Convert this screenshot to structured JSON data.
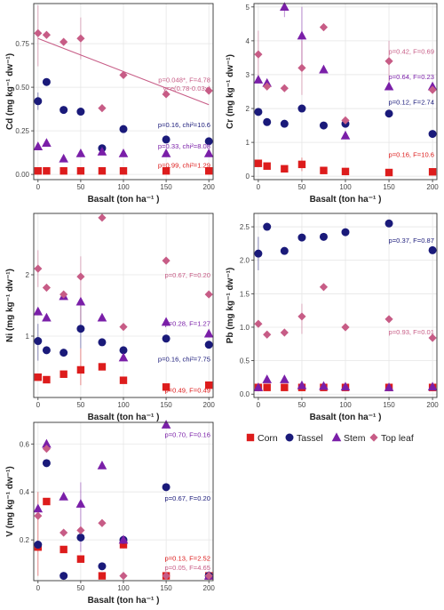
{
  "colors": {
    "corn": "#dd1c1c",
    "tassel": "#1a1a7a",
    "stem": "#7a1fa8",
    "topleaf": "#c75c86",
    "grid": "#e6e6e6",
    "border": "#333333"
  },
  "legend": {
    "items": [
      {
        "key": "corn",
        "label": "Corn",
        "marker": "square"
      },
      {
        "key": "tassel",
        "label": "Tassel",
        "marker": "circle"
      },
      {
        "key": "stem",
        "label": "Stem",
        "marker": "triangle"
      },
      {
        "key": "topleaf",
        "label": "Top leaf",
        "marker": "diamond"
      }
    ]
  },
  "chart_data": [
    {
      "id": "cd",
      "type": "scatter",
      "xlabel": "Basalt (ton ha⁻¹ )",
      "ylabel": "Cd (mg kg⁻¹ dw⁻¹)",
      "xlim": [
        -5,
        205
      ],
      "ylim": [
        -0.03,
        0.98
      ],
      "xticks": [
        0,
        50,
        100,
        150,
        200
      ],
      "yticks": [
        0.0,
        0.25,
        0.5,
        0.75
      ],
      "ytick_labels": [
        "0.00",
        "0.25",
        "0.50",
        "0.75"
      ],
      "series": [
        {
          "key": "corn",
          "x": [
            0,
            10,
            30,
            50,
            75,
            100,
            150,
            200
          ],
          "y": [
            0.02,
            0.02,
            0.02,
            0.02,
            0.02,
            0.02,
            0.02,
            0.02
          ]
        },
        {
          "key": "tassel",
          "x": [
            0,
            10,
            30,
            50,
            75,
            100,
            150,
            200
          ],
          "y": [
            0.42,
            0.53,
            0.37,
            0.36,
            0.15,
            0.26,
            0.2,
            0.19
          ],
          "err": [
            [
              0,
              0.37,
              0.47
            ]
          ]
        },
        {
          "key": "stem",
          "x": [
            0,
            10,
            30,
            50,
            75,
            100,
            150,
            200
          ],
          "y": [
            0.16,
            0.18,
            0.09,
            0.12,
            0.13,
            0.12,
            0.12,
            0.12
          ]
        },
        {
          "key": "topleaf",
          "x": [
            0,
            10,
            30,
            50,
            75,
            100,
            150,
            200
          ],
          "y": [
            0.81,
            0.8,
            0.76,
            0.78,
            0.38,
            0.57,
            0.46,
            0.48
          ],
          "err": [
            [
              0,
              0.62,
              0.97
            ],
            [
              50,
              0.66,
              0.9
            ]
          ]
        }
      ],
      "fit": {
        "key": "topleaf",
        "x": [
          0,
          200
        ],
        "y": [
          0.78,
          0.4
        ]
      },
      "annotations": [
        {
          "key": "topleaf",
          "text": "p=0.048*, F=4.78",
          "y": 0.545
        },
        {
          "key": "topleaf",
          "text": "y=e(0.78-0.03x)",
          "y": 0.495
        },
        {
          "key": "tassel",
          "text": "p=0.16, chi²=10.6",
          "y": 0.285
        },
        {
          "key": "stem",
          "text": "p=0.33, chi²=8.08",
          "y": 0.165
        },
        {
          "key": "corn",
          "text": "p=0.99, chi²=1.29",
          "y": 0.055
        }
      ]
    },
    {
      "id": "cr",
      "type": "scatter",
      "xlabel": "Basalt (ton ha⁻¹ )",
      "ylabel": "Cr (mg kg⁻¹ dw⁻¹)",
      "xlim": [
        -5,
        205
      ],
      "ylim": [
        -0.1,
        5.1
      ],
      "xticks": [
        0,
        50,
        100,
        150,
        200
      ],
      "yticks": [
        0,
        1,
        2,
        3,
        4,
        5
      ],
      "ytick_labels": [
        "0",
        "1",
        "2",
        "3",
        "4",
        "5"
      ],
      "series": [
        {
          "key": "corn",
          "x": [
            0,
            10,
            30,
            50,
            75,
            100,
            150,
            200
          ],
          "y": [
            0.38,
            0.3,
            0.22,
            0.35,
            0.17,
            0.14,
            0.11,
            0.13
          ],
          "err": [
            [
              50,
              0.15,
              0.55
            ]
          ]
        },
        {
          "key": "tassel",
          "x": [
            0,
            10,
            30,
            50,
            75,
            100,
            150,
            200
          ],
          "y": [
            1.9,
            1.6,
            1.55,
            2.0,
            1.5,
            1.55,
            1.85,
            1.25
          ]
        },
        {
          "key": "stem",
          "x": [
            0,
            10,
            30,
            50,
            75,
            100,
            150,
            200
          ],
          "y": [
            2.85,
            2.75,
            5.0,
            4.15,
            3.15,
            1.2,
            2.65,
            2.65
          ],
          "err": [
            [
              30,
              4.7,
              5.1
            ],
            [
              50,
              3.2,
              5.0
            ]
          ]
        },
        {
          "key": "topleaf",
          "x": [
            0,
            10,
            30,
            50,
            75,
            100,
            150,
            200
          ],
          "y": [
            3.6,
            2.65,
            2.6,
            3.2,
            4.4,
            1.65,
            3.4,
            2.55
          ],
          "err": [
            [
              0,
              2.9,
              4.3
            ],
            [
              50,
              2.4,
              4.0
            ],
            [
              150,
              2.8,
              4.0
            ]
          ]
        }
      ],
      "annotations": [
        {
          "key": "topleaf",
          "text": "p=0.42, F=0.69",
          "y": 3.7
        },
        {
          "key": "stem",
          "text": "p=0.64, F=0.23",
          "y": 2.95
        },
        {
          "key": "tassel",
          "text": "p=0.12, F=2.74",
          "y": 2.2
        },
        {
          "key": "corn",
          "text": "p=0.16, F=10.6",
          "y": 0.65
        }
      ]
    },
    {
      "id": "ni",
      "type": "scatter",
      "xlabel": "Basalt (ton ha⁻¹ )",
      "ylabel": "Ni (mg kg⁻¹ dw⁻¹)",
      "xlim": [
        -5,
        205
      ],
      "ylim": [
        0.0,
        3.0
      ],
      "xticks": [
        0,
        50,
        100,
        150,
        200
      ],
      "yticks": [
        1,
        2
      ],
      "ytick_labels": [
        "1",
        "2"
      ],
      "series": [
        {
          "key": "corn",
          "x": [
            0,
            10,
            30,
            50,
            75,
            100,
            150,
            200
          ],
          "y": [
            0.33,
            0.29,
            0.38,
            0.45,
            0.5,
            0.28,
            0.17,
            0.2
          ],
          "err": [
            [
              50,
              0.2,
              0.8
            ]
          ]
        },
        {
          "key": "tassel",
          "x": [
            0,
            10,
            30,
            50,
            75,
            100,
            150,
            200
          ],
          "y": [
            0.92,
            0.77,
            0.73,
            1.12,
            0.9,
            0.77,
            0.96,
            0.86
          ],
          "err": [
            [
              0,
              0.6,
              1.2
            ],
            [
              50,
              0.8,
              1.5
            ]
          ]
        },
        {
          "key": "stem",
          "x": [
            0,
            10,
            30,
            50,
            75,
            100,
            150,
            200
          ],
          "y": [
            1.4,
            1.3,
            1.65,
            1.56,
            1.3,
            0.65,
            1.23,
            1.04
          ]
        },
        {
          "key": "topleaf",
          "x": [
            0,
            10,
            30,
            50,
            75,
            100,
            150,
            200
          ],
          "y": [
            2.1,
            1.79,
            1.68,
            1.97,
            2.93,
            1.15,
            2.23,
            1.68
          ],
          "err": [
            [
              0,
              1.8,
              2.4
            ],
            [
              50,
              1.2,
              2.3
            ]
          ]
        }
      ],
      "annotations": [
        {
          "key": "topleaf",
          "text": "p=0.67, F=0.20",
          "y": 2.0
        },
        {
          "key": "stem",
          "text": "p=0.28, F=1.27",
          "y": 1.21
        },
        {
          "key": "tassel",
          "text": "p=0.16, chi²=7.75",
          "y": 0.63
        },
        {
          "key": "corn",
          "text": "p=0.49, F=0.49",
          "y": 0.12
        }
      ]
    },
    {
      "id": "pb",
      "type": "scatter",
      "xlabel": "Basalt (ton ha⁻¹ )",
      "ylabel": "Pb (mg kg⁻¹ dw⁻¹)",
      "xlim": [
        -5,
        205
      ],
      "ylim": [
        -0.05,
        2.7
      ],
      "xticks": [
        0,
        50,
        100,
        150,
        200
      ],
      "yticks": [
        0.0,
        0.5,
        1.0,
        1.5,
        2.0,
        2.5
      ],
      "ytick_labels": [
        "0.0",
        "0.5",
        "1.0",
        "1.5",
        "2.0",
        "2.5"
      ],
      "series": [
        {
          "key": "corn",
          "x": [
            0,
            10,
            30,
            50,
            75,
            100,
            150,
            200
          ],
          "y": [
            0.1,
            0.1,
            0.1,
            0.1,
            0.1,
            0.1,
            0.1,
            0.1
          ]
        },
        {
          "key": "tassel",
          "x": [
            0,
            10,
            30,
            50,
            75,
            100,
            150,
            200
          ],
          "y": [
            2.1,
            2.5,
            2.14,
            2.34,
            2.35,
            2.42,
            2.55,
            2.15
          ],
          "err": [
            [
              0,
              1.85,
              2.35
            ]
          ]
        },
        {
          "key": "stem",
          "x": [
            0,
            10,
            30,
            50,
            75,
            100,
            150,
            200
          ],
          "y": [
            0.1,
            0.22,
            0.22,
            0.13,
            0.12,
            0.11,
            0.1,
            0.11
          ]
        },
        {
          "key": "topleaf",
          "x": [
            0,
            10,
            30,
            50,
            75,
            100,
            150,
            200
          ],
          "y": [
            1.05,
            0.89,
            0.92,
            1.16,
            1.6,
            1.0,
            1.12,
            0.84
          ],
          "err": [
            [
              50,
              0.9,
              1.35
            ]
          ]
        }
      ],
      "annotations": [
        {
          "key": "tassel",
          "text": "p=0.37, F=0.87",
          "y": 2.3
        },
        {
          "key": "topleaf",
          "text": "p=0.93, F=0.01",
          "y": 0.93
        }
      ]
    },
    {
      "id": "v",
      "type": "scatter",
      "xlabel": "Basalt (ton ha⁻¹ )",
      "ylabel": "V (mg kg⁻¹ dw⁻¹)",
      "xlim": [
        -5,
        205
      ],
      "ylim": [
        0.03,
        0.69
      ],
      "xticks": [
        0,
        50,
        100,
        150,
        200
      ],
      "yticks": [
        0.2,
        0.4,
        0.6
      ],
      "ytick_labels": [
        "0.2",
        "0.4",
        "0.6"
      ],
      "series": [
        {
          "key": "corn",
          "x": [
            0,
            10,
            30,
            50,
            75,
            100,
            150,
            200
          ],
          "y": [
            0.17,
            0.36,
            0.16,
            0.12,
            0.05,
            0.18,
            0.05,
            0.05
          ],
          "err": [
            [
              0,
              0.05,
              0.4
            ]
          ]
        },
        {
          "key": "tassel",
          "x": [
            0,
            10,
            30,
            50,
            75,
            100,
            150,
            200
          ],
          "y": [
            0.18,
            0.52,
            0.05,
            0.21,
            0.09,
            0.2,
            0.42,
            0.05
          ]
        },
        {
          "key": "stem",
          "x": [
            0,
            10,
            30,
            50,
            75,
            100,
            150,
            200
          ],
          "y": [
            0.33,
            0.6,
            0.38,
            0.35,
            0.51,
            0.2,
            0.68,
            0.05
          ],
          "err": [
            [
              50,
              0.15,
              0.44
            ]
          ]
        },
        {
          "key": "topleaf",
          "x": [
            0,
            10,
            30,
            50,
            75,
            100,
            150,
            200
          ],
          "y": [
            0.3,
            0.58,
            0.23,
            0.24,
            0.27,
            0.05,
            0.05,
            0.05
          ]
        }
      ],
      "annotations": [
        {
          "key": "stem",
          "text": "p=0.70, F=0.16",
          "y": 0.64
        },
        {
          "key": "tassel",
          "text": "p=0.67, F=0.20",
          "y": 0.375
        },
        {
          "key": "corn",
          "text": "p=0.13, F=2.52",
          "y": 0.125
        },
        {
          "key": "topleaf",
          "text": "p=0.05, F=4.65",
          "y": 0.085
        }
      ]
    }
  ]
}
